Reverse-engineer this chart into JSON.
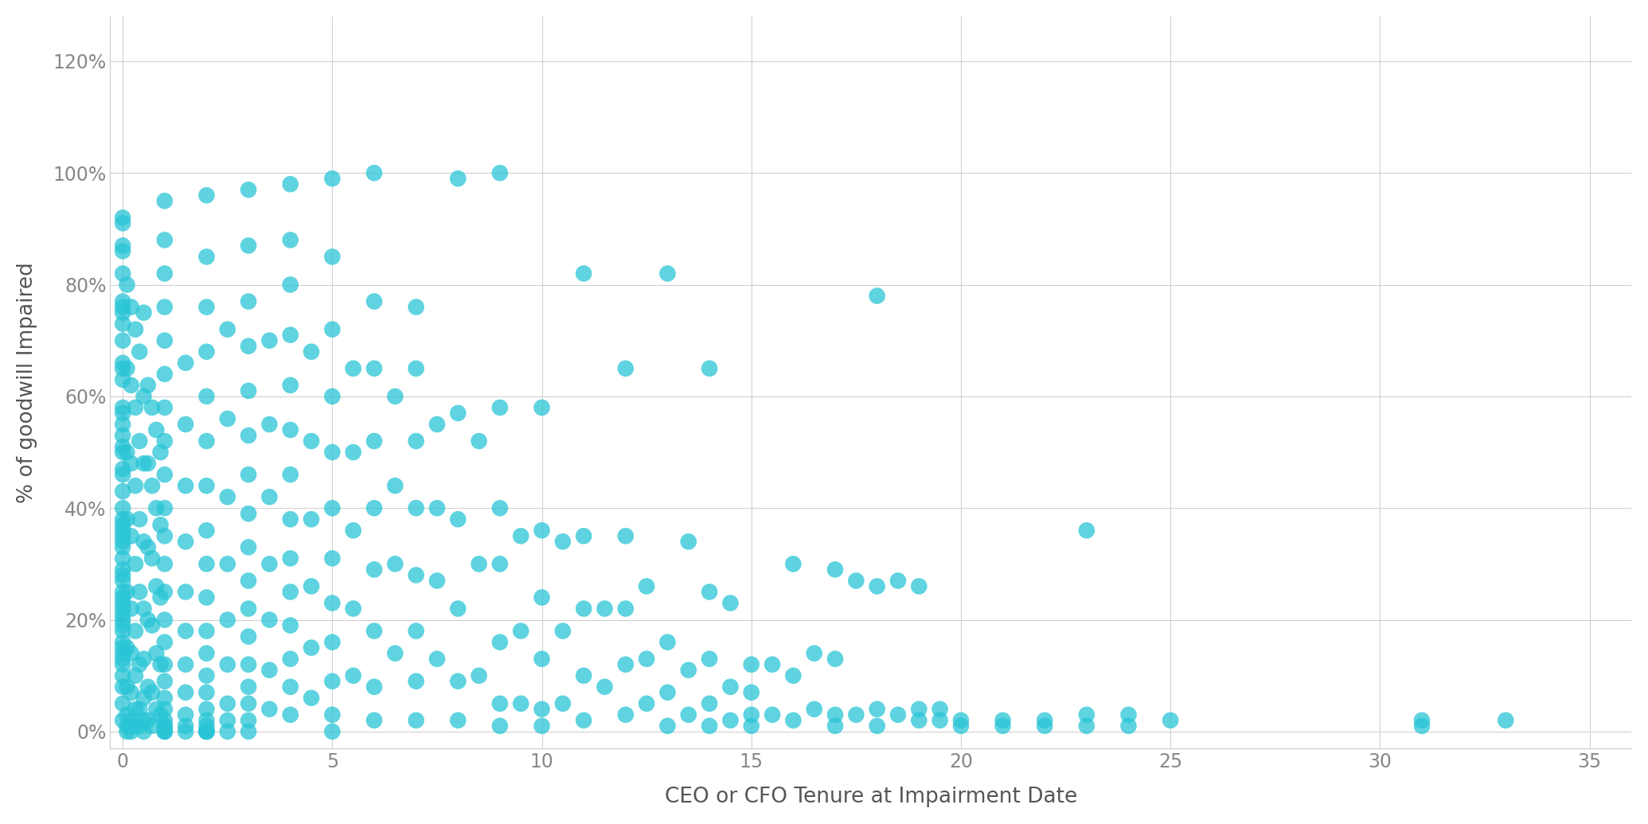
{
  "xlabel": "CEO or CFO Tenure at Impairment Date",
  "ylabel": "% of goodwill Impaired",
  "xlim": [
    -0.3,
    36
  ],
  "ylim": [
    -0.03,
    1.28
  ],
  "yticks": [
    0,
    0.2,
    0.4,
    0.6,
    0.8,
    1.0,
    1.2
  ],
  "ytick_labels": [
    "0%",
    "20%",
    "40%",
    "60%",
    "80%",
    "100%",
    "120%"
  ],
  "xticks": [
    0,
    5,
    10,
    15,
    20,
    25,
    30,
    35
  ],
  "dot_color": "#29C5D6",
  "bg_color": "#ffffff",
  "grid_color": "#d0d0d0",
  "dot_size": 220,
  "dot_alpha": 0.75,
  "x": [
    0,
    0,
    0,
    0,
    0,
    0,
    0,
    0,
    0,
    0,
    0,
    0,
    0,
    0,
    0,
    0,
    0,
    0,
    0,
    0,
    0,
    0,
    0,
    0,
    0,
    0,
    0,
    0,
    0,
    0,
    0,
    0,
    0,
    0,
    0,
    0,
    0,
    0,
    0,
    0,
    0,
    0,
    0,
    0,
    0,
    0,
    0,
    0,
    0,
    0,
    0.1,
    0.1,
    0.1,
    0.1,
    0.1,
    0.1,
    0.1,
    0.1,
    0.1,
    0.1,
    0.2,
    0.2,
    0.2,
    0.2,
    0.2,
    0.2,
    0.2,
    0.2,
    0.2,
    0.2,
    0.3,
    0.3,
    0.3,
    0.3,
    0.3,
    0.3,
    0.3,
    0.3,
    0.4,
    0.4,
    0.4,
    0.4,
    0.4,
    0.4,
    0.4,
    0.5,
    0.5,
    0.5,
    0.5,
    0.5,
    0.5,
    0.5,
    0.5,
    0.5,
    0.6,
    0.6,
    0.6,
    0.6,
    0.6,
    0.6,
    0.7,
    0.7,
    0.7,
    0.7,
    0.7,
    0.7,
    0.8,
    0.8,
    0.8,
    0.8,
    0.8,
    0.9,
    0.9,
    0.9,
    0.9,
    0.9,
    1,
    1,
    1,
    1,
    1,
    1,
    1,
    1,
    1,
    1,
    1,
    1,
    1,
    1,
    1,
    1,
    1,
    1,
    1,
    1,
    1,
    1,
    1,
    1,
    1,
    1.5,
    1.5,
    1.5,
    1.5,
    1.5,
    1.5,
    1.5,
    1.5,
    1.5,
    1.5,
    1.5,
    2,
    2,
    2,
    2,
    2,
    2,
    2,
    2,
    2,
    2,
    2,
    2,
    2,
    2,
    2,
    2,
    2,
    2,
    2,
    2,
    2,
    2,
    2.5,
    2.5,
    2.5,
    2.5,
    2.5,
    2.5,
    2.5,
    2.5,
    2.5,
    3,
    3,
    3,
    3,
    3,
    3,
    3,
    3,
    3,
    3,
    3,
    3,
    3,
    3,
    3,
    3,
    3,
    3.5,
    3.5,
    3.5,
    3.5,
    3.5,
    3.5,
    3.5,
    4,
    4,
    4,
    4,
    4,
    4,
    4,
    4,
    4,
    4,
    4,
    4,
    4,
    4,
    4.5,
    4.5,
    4.5,
    4.5,
    4.5,
    4.5,
    5,
    5,
    5,
    5,
    5,
    5,
    5,
    5,
    5,
    5,
    5,
    5,
    5.5,
    5.5,
    5.5,
    5.5,
    5.5,
    6,
    6,
    6,
    6,
    6,
    6,
    6,
    6,
    6,
    6.5,
    6.5,
    6.5,
    6.5,
    7,
    7,
    7,
    7,
    7,
    7,
    7,
    7,
    7.5,
    7.5,
    7.5,
    7.5,
    8,
    8,
    8,
    8,
    8,
    8,
    8.5,
    8.5,
    8.5,
    9,
    9,
    9,
    9,
    9,
    9,
    9,
    9.5,
    9.5,
    9.5,
    10,
    10,
    10,
    10,
    10,
    10,
    10.5,
    10.5,
    10.5,
    11,
    11,
    11,
    11,
    11,
    11.5,
    11.5,
    12,
    12,
    12,
    12,
    12,
    12.5,
    12.5,
    12.5,
    13,
    13,
    13,
    13,
    13.5,
    13.5,
    13.5,
    14,
    14,
    14,
    14,
    14,
    14.5,
    14.5,
    14.5,
    15,
    15,
    15,
    15,
    15.5,
    15.5,
    16,
    16,
    16,
    16.5,
    16.5,
    17,
    17,
    17,
    17,
    17.5,
    17.5,
    18,
    18,
    18,
    18,
    18.5,
    18.5,
    19,
    19,
    19,
    19.5,
    19.5,
    20,
    20,
    21,
    21,
    22,
    22,
    23,
    23,
    23,
    24,
    24,
    25,
    31,
    31,
    33
  ],
  "y": [
    0.92,
    0.91,
    0.87,
    0.86,
    0.82,
    0.77,
    0.76,
    0.75,
    0.73,
    0.7,
    0.66,
    0.65,
    0.63,
    0.58,
    0.57,
    0.55,
    0.53,
    0.51,
    0.5,
    0.47,
    0.46,
    0.43,
    0.4,
    0.38,
    0.37,
    0.36,
    0.35,
    0.34,
    0.33,
    0.31,
    0.29,
    0.28,
    0.27,
    0.25,
    0.24,
    0.23,
    0.22,
    0.21,
    0.2,
    0.19,
    0.18,
    0.16,
    0.15,
    0.14,
    0.13,
    0.12,
    0.1,
    0.08,
    0.05,
    0.02,
    0.8,
    0.65,
    0.5,
    0.38,
    0.25,
    0.15,
    0.08,
    0.03,
    0.01,
    0.0,
    0.76,
    0.62,
    0.48,
    0.35,
    0.22,
    0.14,
    0.07,
    0.02,
    0.01,
    0.0,
    0.72,
    0.58,
    0.44,
    0.3,
    0.18,
    0.1,
    0.04,
    0.01,
    0.68,
    0.52,
    0.38,
    0.25,
    0.12,
    0.04,
    0.01,
    0.75,
    0.6,
    0.48,
    0.34,
    0.22,
    0.13,
    0.06,
    0.02,
    0.0,
    0.62,
    0.48,
    0.33,
    0.2,
    0.08,
    0.02,
    0.58,
    0.44,
    0.31,
    0.19,
    0.07,
    0.01,
    0.54,
    0.4,
    0.26,
    0.14,
    0.04,
    0.5,
    0.37,
    0.24,
    0.12,
    0.03,
    0.95,
    0.88,
    0.82,
    0.76,
    0.7,
    0.64,
    0.58,
    0.52,
    0.46,
    0.4,
    0.35,
    0.3,
    0.25,
    0.2,
    0.16,
    0.12,
    0.09,
    0.06,
    0.04,
    0.02,
    0.01,
    0.01,
    0.0,
    0.0,
    0.0,
    0.66,
    0.55,
    0.44,
    0.34,
    0.25,
    0.18,
    0.12,
    0.07,
    0.03,
    0.01,
    0.0,
    0.96,
    0.85,
    0.76,
    0.68,
    0.6,
    0.52,
    0.44,
    0.36,
    0.3,
    0.24,
    0.18,
    0.14,
    0.1,
    0.07,
    0.04,
    0.02,
    0.01,
    0.0,
    0.0,
    0.0,
    0.0,
    0.0,
    0.72,
    0.56,
    0.42,
    0.3,
    0.2,
    0.12,
    0.05,
    0.02,
    0.0,
    0.97,
    0.87,
    0.77,
    0.69,
    0.61,
    0.53,
    0.46,
    0.39,
    0.33,
    0.27,
    0.22,
    0.17,
    0.12,
    0.08,
    0.05,
    0.02,
    0.0,
    0.7,
    0.55,
    0.42,
    0.3,
    0.2,
    0.11,
    0.04,
    0.98,
    0.88,
    0.8,
    0.71,
    0.62,
    0.54,
    0.46,
    0.38,
    0.31,
    0.25,
    0.19,
    0.13,
    0.08,
    0.03,
    0.68,
    0.52,
    0.38,
    0.26,
    0.15,
    0.06,
    0.99,
    0.85,
    0.72,
    0.6,
    0.5,
    0.4,
    0.31,
    0.23,
    0.16,
    0.09,
    0.03,
    0.0,
    0.65,
    0.5,
    0.36,
    0.22,
    0.1,
    1.0,
    0.77,
    0.65,
    0.52,
    0.4,
    0.29,
    0.18,
    0.08,
    0.02,
    0.6,
    0.44,
    0.3,
    0.14,
    0.76,
    0.65,
    0.52,
    0.4,
    0.28,
    0.18,
    0.09,
    0.02,
    0.55,
    0.4,
    0.27,
    0.13,
    0.99,
    0.57,
    0.38,
    0.22,
    0.09,
    0.02,
    0.52,
    0.3,
    0.1,
    1.0,
    0.58,
    0.4,
    0.3,
    0.16,
    0.05,
    0.01,
    0.35,
    0.18,
    0.05,
    0.58,
    0.36,
    0.24,
    0.13,
    0.04,
    0.01,
    0.34,
    0.18,
    0.05,
    0.82,
    0.35,
    0.22,
    0.1,
    0.02,
    0.22,
    0.08,
    0.65,
    0.35,
    0.22,
    0.12,
    0.03,
    0.26,
    0.13,
    0.05,
    0.82,
    0.16,
    0.07,
    0.01,
    0.34,
    0.11,
    0.03,
    0.65,
    0.25,
    0.13,
    0.05,
    0.01,
    0.23,
    0.08,
    0.02,
    0.12,
    0.07,
    0.03,
    0.01,
    0.12,
    0.03,
    0.3,
    0.1,
    0.02,
    0.14,
    0.04,
    0.29,
    0.13,
    0.03,
    0.01,
    0.27,
    0.03,
    0.78,
    0.26,
    0.04,
    0.01,
    0.27,
    0.03,
    0.26,
    0.04,
    0.02,
    0.04,
    0.02,
    0.02,
    0.01,
    0.02,
    0.01,
    0.02,
    0.01,
    0.36,
    0.03,
    0.01,
    0.03,
    0.01,
    0.02,
    0.02,
    0.01,
    0.02
  ]
}
